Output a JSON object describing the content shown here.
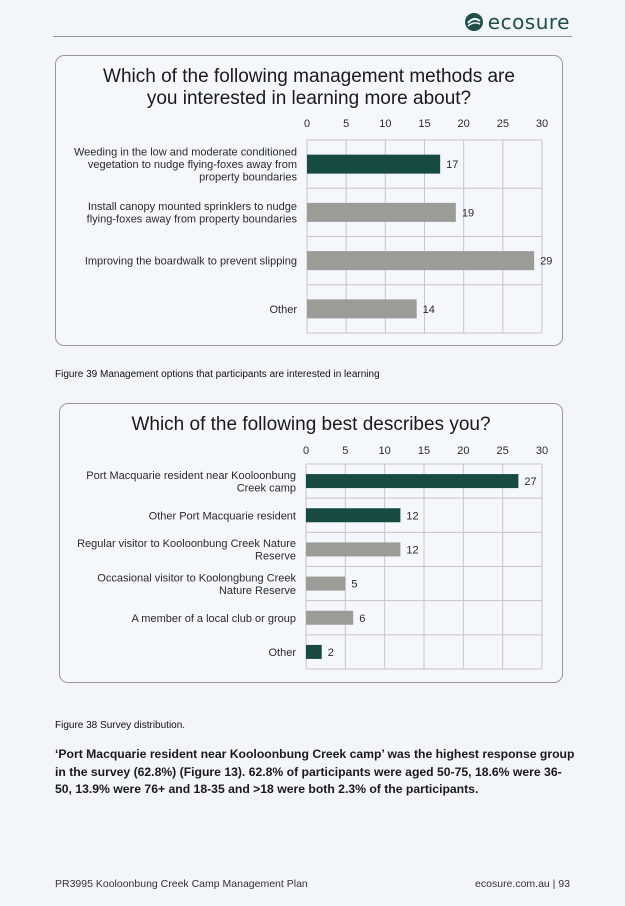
{
  "header": {
    "logo_text": "ecosure"
  },
  "charts": [
    {
      "title": "Which of the following management methods are you interested in learning more about?",
      "caption": "Figure 39 Management options that participants are interested in learning"
    },
    {
      "title": "Which of the following best describes you?",
      "caption": "Figure 38 Survey distribution."
    }
  ],
  "chart_data": [
    {
      "type": "bar",
      "orientation": "horizontal",
      "title": "Which of the following management methods are you interested in learning more about?",
      "categories": [
        [
          "Weeding in the low and moderate conditioned",
          "vegetation to nudge flying-foxes away from",
          "property boundaries"
        ],
        [
          "Install canopy mounted sprinklers to nudge",
          "flying-foxes away from property boundaries"
        ],
        [
          "Improving the boardwalk to prevent slipping"
        ],
        [
          "Other"
        ]
      ],
      "values": [
        17,
        19,
        29,
        14
      ],
      "bar_colors": [
        "#174a42",
        "#9b9b97",
        "#9b9b97",
        "#9b9b97"
      ],
      "xlim": [
        0,
        30
      ],
      "ticks": [
        0,
        5,
        10,
        15,
        20,
        25,
        30
      ],
      "grid": true
    },
    {
      "type": "bar",
      "orientation": "horizontal",
      "title": "Which of the following best describes you?",
      "categories": [
        [
          "Port Macquarie resident near Kooloonbung",
          "Creek camp"
        ],
        [
          "Other Port Macquarie resident"
        ],
        [
          "Regular visitor to Kooloonbung Creek Nature",
          "Reserve"
        ],
        [
          "Occasional visitor to Koolongbung Creek",
          "Nature Reserve"
        ],
        [
          "A member of a local club or group"
        ],
        [
          "Other"
        ]
      ],
      "values": [
        27,
        12,
        12,
        5,
        6,
        2
      ],
      "bar_colors": [
        "#174a42",
        "#174a42",
        "#9b9b97",
        "#9b9b97",
        "#9b9b97",
        "#174a42"
      ],
      "xlim": [
        0,
        30
      ],
      "ticks": [
        0,
        5,
        10,
        15,
        20,
        25,
        30
      ],
      "grid": true
    }
  ],
  "body_text": "‘Port Macquarie resident near Kooloonbung Creek camp’ was the highest response group in the survey (62.8%) (Figure 13). 62.8% of participants were aged 50-75, 18.6% were 36-50, 13.9% were 76+ and 18-35 and >18 were both 2.3% of the participants.",
  "footer": {
    "left": "PR3995 Kooloonbung Creek Camp Management Plan",
    "right": "ecosure.com.au  |  93"
  }
}
